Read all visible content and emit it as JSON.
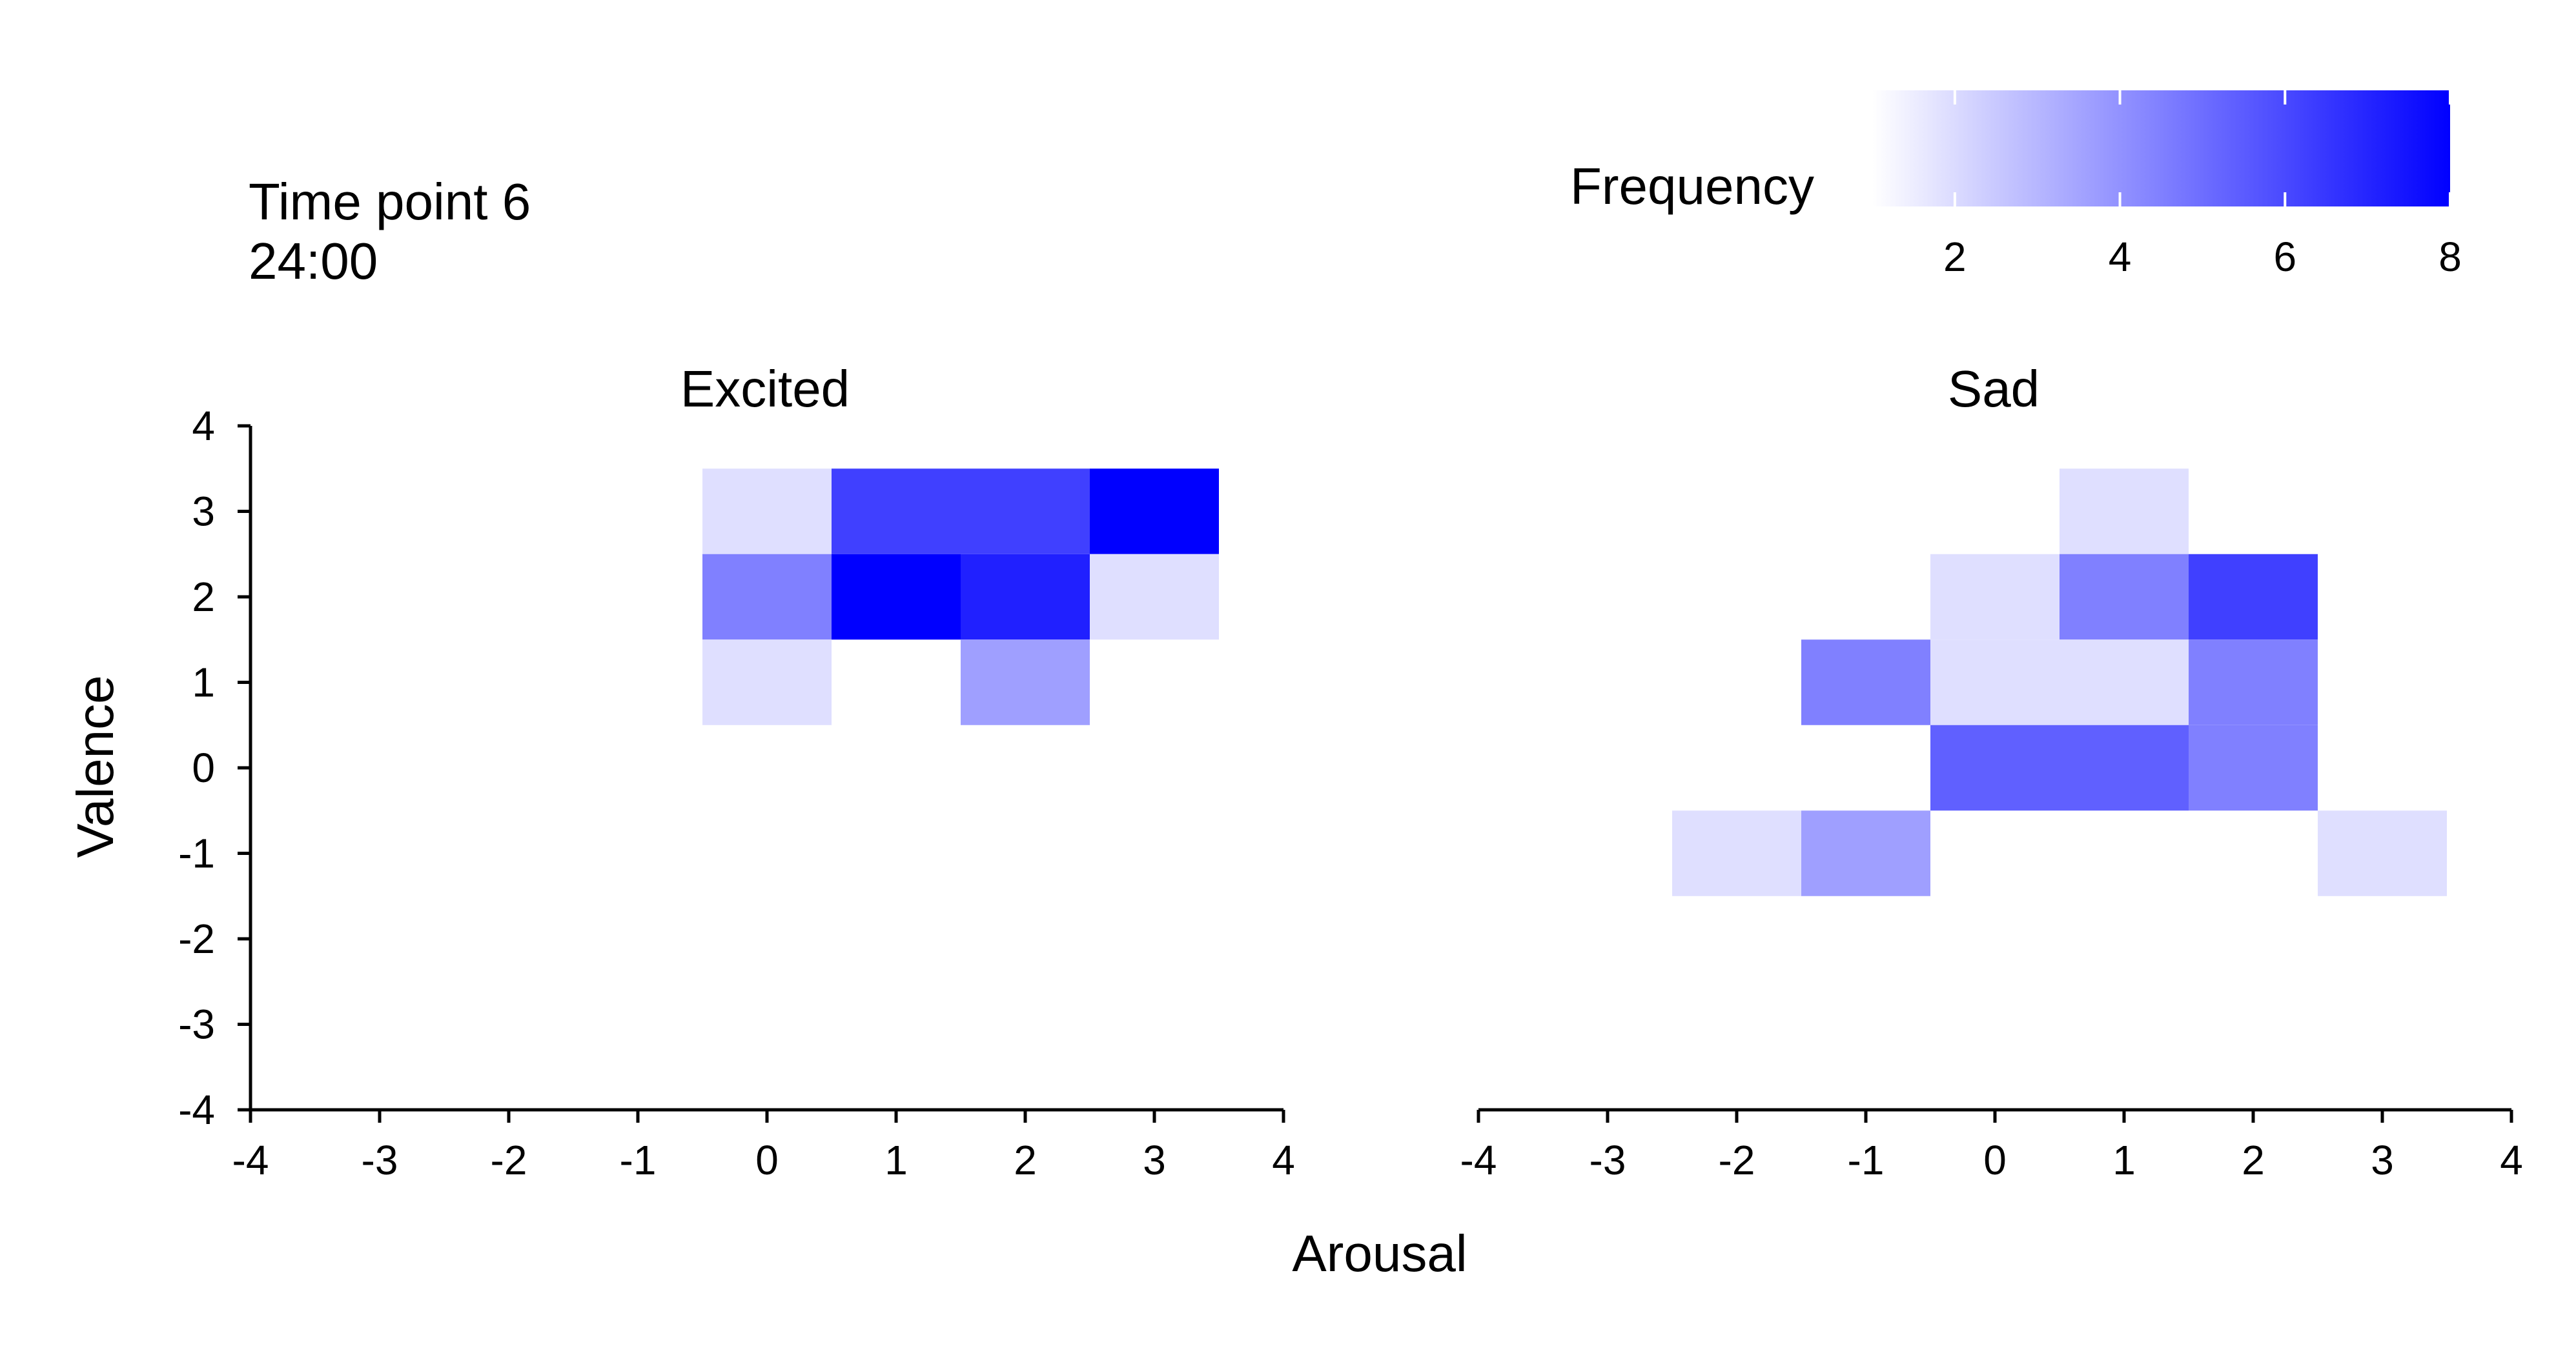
{
  "header": {
    "line1": "Time point 6",
    "line2": "24:00"
  },
  "colorbar": {
    "label": "Frequency",
    "ticks": [
      2,
      4,
      6,
      8
    ],
    "range": [
      1,
      8
    ],
    "color_low": "#ffffff",
    "color_high": "#0000ff"
  },
  "chart_data": [
    {
      "type": "heatmap",
      "title": "Excited",
      "xlabel": "Arousal",
      "ylabel": "Valence",
      "xlim": [
        -4,
        4
      ],
      "ylim": [
        -4,
        4
      ],
      "xticks": [
        -4,
        -3,
        -2,
        -1,
        0,
        1,
        2,
        3,
        4
      ],
      "yticks": [
        -4,
        -3,
        -2,
        -1,
        0,
        1,
        2,
        3,
        4
      ],
      "grid": false,
      "cells": [
        {
          "x": 0,
          "y": 3,
          "value": 1
        },
        {
          "x": 1,
          "y": 3,
          "value": 6
        },
        {
          "x": 2,
          "y": 3,
          "value": 6
        },
        {
          "x": 3,
          "y": 3,
          "value": 8
        },
        {
          "x": 0,
          "y": 2,
          "value": 4
        },
        {
          "x": 1,
          "y": 2,
          "value": 8
        },
        {
          "x": 2,
          "y": 2,
          "value": 7
        },
        {
          "x": 3,
          "y": 2,
          "value": 1
        },
        {
          "x": 0,
          "y": 1,
          "value": 1
        },
        {
          "x": 2,
          "y": 1,
          "value": 3
        }
      ]
    },
    {
      "type": "heatmap",
      "title": "Sad",
      "xlabel": "Arousal",
      "ylabel": "Valence",
      "xlim": [
        -4,
        4
      ],
      "ylim": [
        -4,
        4
      ],
      "xticks": [
        -4,
        -3,
        -2,
        -1,
        0,
        1,
        2,
        3,
        4
      ],
      "yticks": [],
      "grid": false,
      "cells": [
        {
          "x": 1,
          "y": 3,
          "value": 1
        },
        {
          "x": 0,
          "y": 2,
          "value": 1
        },
        {
          "x": 1,
          "y": 2,
          "value": 4
        },
        {
          "x": 2,
          "y": 2,
          "value": 6
        },
        {
          "x": -1,
          "y": 1,
          "value": 4
        },
        {
          "x": 0,
          "y": 1,
          "value": 1
        },
        {
          "x": 1,
          "y": 1,
          "value": 1
        },
        {
          "x": 2,
          "y": 1,
          "value": 4
        },
        {
          "x": 0,
          "y": 0,
          "value": 5
        },
        {
          "x": 1,
          "y": 0,
          "value": 5
        },
        {
          "x": 2,
          "y": 0,
          "value": 4
        },
        {
          "x": -2,
          "y": -1,
          "value": 1
        },
        {
          "x": -1,
          "y": -1,
          "value": 3
        },
        {
          "x": 3,
          "y": -1,
          "value": 1
        }
      ]
    }
  ]
}
